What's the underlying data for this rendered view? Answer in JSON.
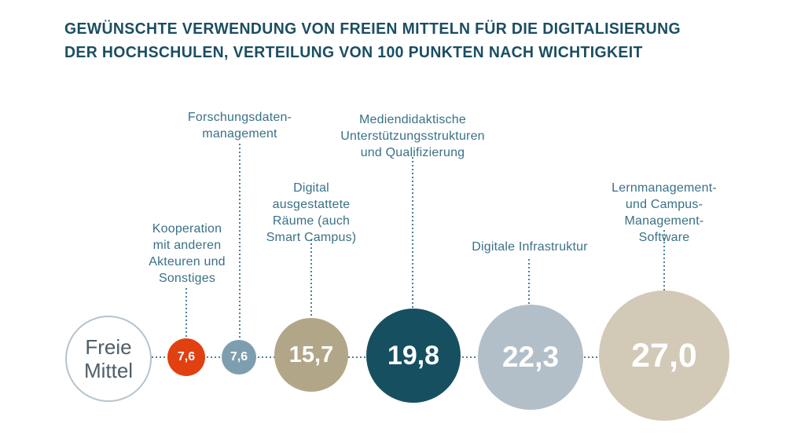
{
  "header": {
    "title": "GEWÜNSCHTE VERWENDUNG VON FREIEN MITTELN FÜR DIE DIGITALISIERUNG\nDER HOCHSCHULEN, VERTEILUNG VON 100 PUNKTEN NACH WICHTIGKEIT"
  },
  "source_node": {
    "label": "Freie\nMittel"
  },
  "colors": {
    "title_text": "#1b4e61",
    "category_label_text": "#3a7187",
    "dotted_line": "#4d7f94",
    "origin_border": "#b6c3cc",
    "origin_text": "#4f5e69",
    "bubble_value_text": "#ffffff"
  },
  "chart_data": {
    "type": "bubble",
    "title": "Gewünschte Verwendung von freien Mitteln für die Digitalisierung der Hochschulen, Verteilung von 100 Punkten nach Wichtigkeit",
    "origin_label": "Freie Mittel",
    "total_points": 100,
    "legend_position": "none",
    "items": [
      {
        "label": "Kooperation mit anderen Akteuren und Sonstiges",
        "label_display": "Kooperation\nmit anderen\nAkteuren und\nSonstiges",
        "value": 7.6,
        "value_label": "7,6",
        "color": "#e14011"
      },
      {
        "label": "Forschungsdatenmanagement",
        "label_display": "Forschungsdaten-\nmanagement",
        "value": 7.6,
        "value_label": "7,6",
        "color": "#7d9eae"
      },
      {
        "label": "Digital ausgestattete Räume (auch Smart Campus)",
        "label_display": "Digital\nausgestattete\nRäume (auch\nSmart Campus)",
        "value": 15.7,
        "value_label": "15,7",
        "color": "#b2a689"
      },
      {
        "label": "Mediendidaktische Unterstützungsstrukturen und Qualifizierung",
        "label_display": "Mediendidaktische\nUnterstützungsstrukturen\nund Qualifizierung",
        "value": 19.8,
        "value_label": "19,8",
        "color": "#165060"
      },
      {
        "label": "Digitale Infrastruktur",
        "label_display": "Digitale Infrastruktur",
        "value": 22.3,
        "value_label": "22,3",
        "color": "#b3bfc8"
      },
      {
        "label": "Lernmanagement- und Campus-Management-Software",
        "label_display": "Lernmanagement-\nund Campus-Management-\nSoftware",
        "value": 27.0,
        "value_label": "27,0",
        "color": "#d3c9b7"
      }
    ]
  }
}
